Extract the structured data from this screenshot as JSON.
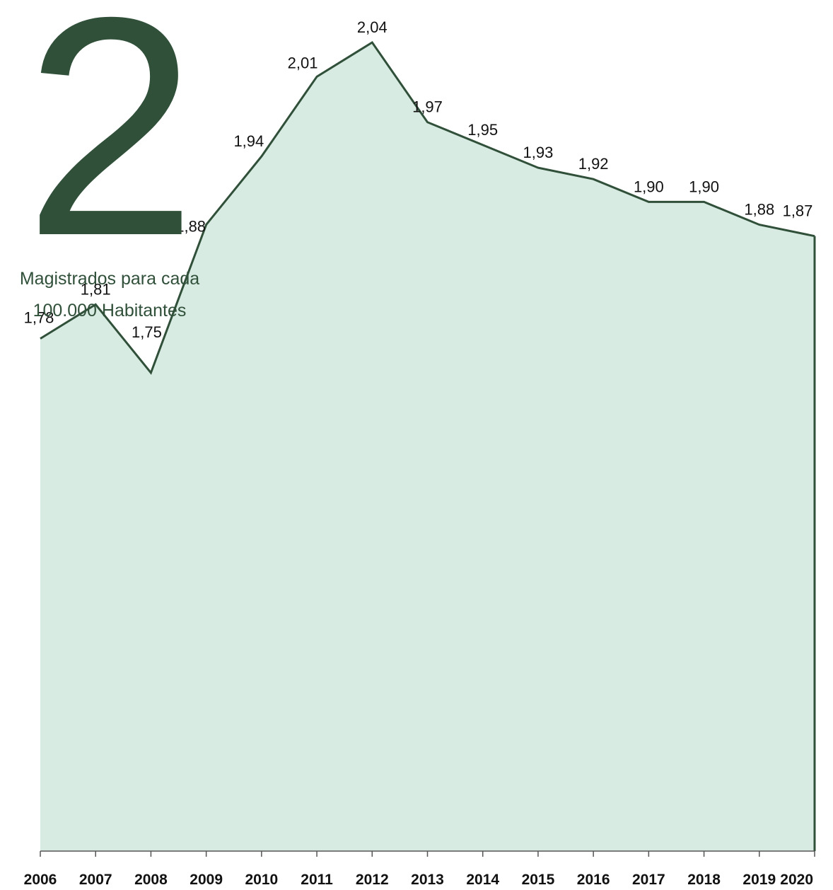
{
  "headline": {
    "number": "2",
    "line1": "Magistrados para cada",
    "line2": "100.000 Habitantes"
  },
  "colors": {
    "line": "#30503a",
    "fill": "#d8ebe3",
    "text": "#111111"
  },
  "chart_data": {
    "type": "area",
    "title": "",
    "xlabel": "",
    "ylabel": "",
    "x": [
      "2006",
      "2007",
      "2008",
      "2009",
      "2010",
      "2011",
      "2012",
      "2013",
      "2014",
      "2015",
      "2016",
      "2017",
      "2018",
      "2019",
      "2020"
    ],
    "values": [
      1.78,
      1.81,
      1.75,
      1.88,
      1.94,
      2.01,
      2.04,
      1.97,
      1.95,
      1.93,
      1.92,
      1.9,
      1.9,
      1.88,
      1.87
    ],
    "labels": [
      "1,78",
      "1,81",
      "1,75",
      "1,88",
      "1,94",
      "2,01",
      "2,04",
      "1,97",
      "1,95",
      "1,93",
      "1,92",
      "1,90",
      "1,90",
      "1,88",
      "1,87"
    ],
    "ylim": [
      1.33,
      2.04
    ],
    "grid": false,
    "legend": "none"
  }
}
